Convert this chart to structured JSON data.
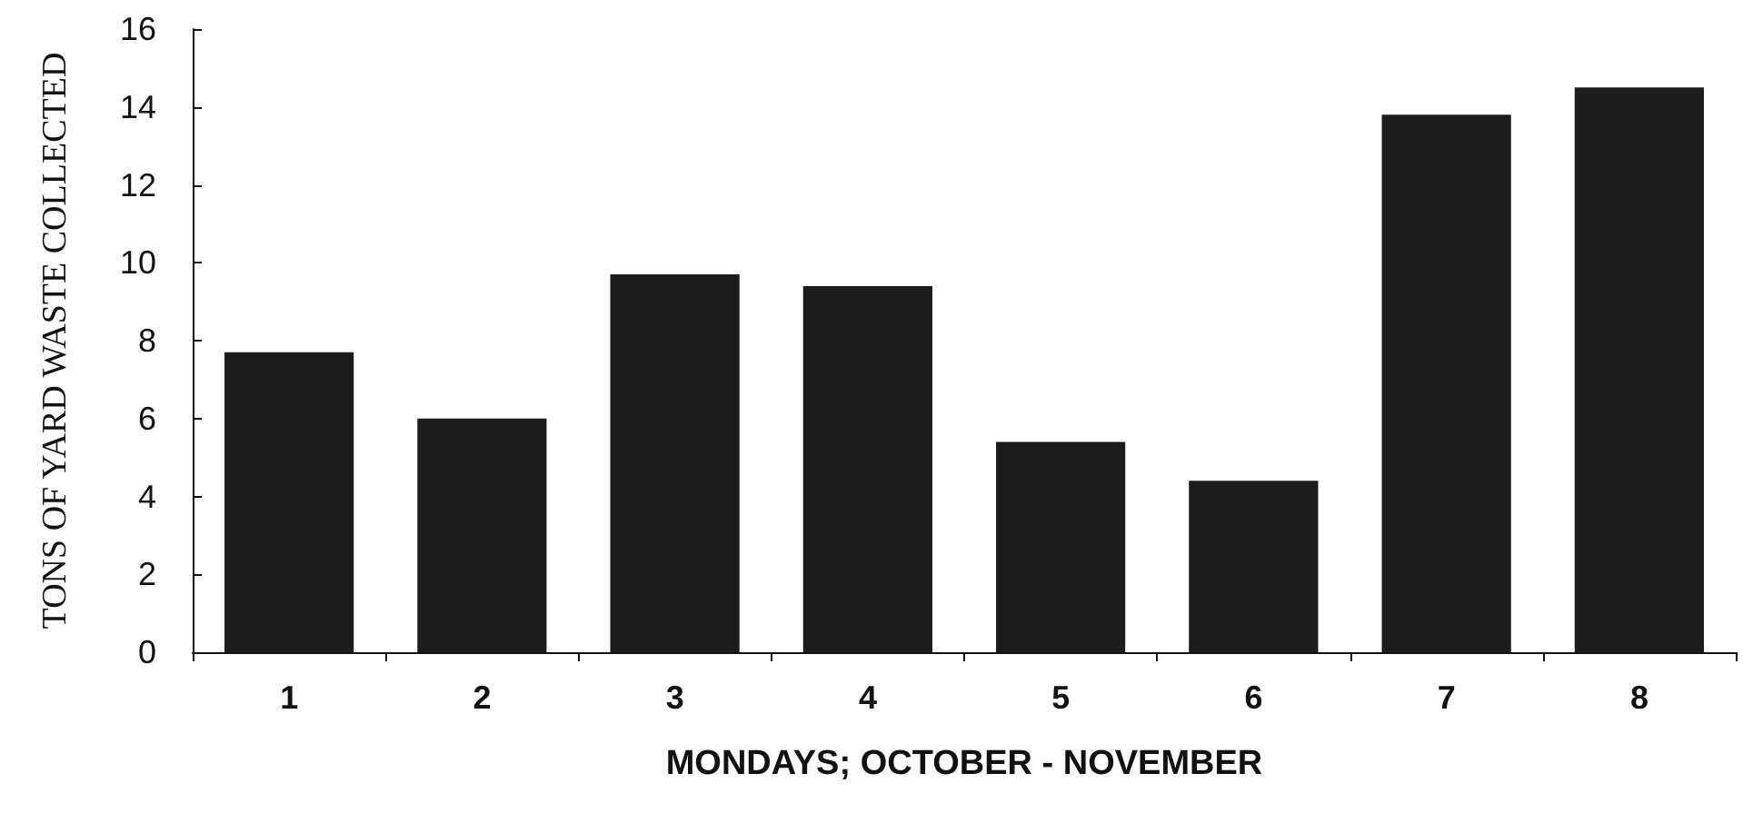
{
  "chart_data": {
    "type": "bar",
    "xlabel": "MONDAYS; OCTOBER - NOVEMBER",
    "ylabel": "TONS OF YARD WASTE COLLECTED",
    "categories": [
      "1",
      "2",
      "3",
      "4",
      "5",
      "6",
      "7",
      "8"
    ],
    "values": [
      7.7,
      6.0,
      9.7,
      9.4,
      5.4,
      4.4,
      13.8,
      14.5
    ],
    "color": "#1c1c1c",
    "ylim": [
      0,
      16
    ],
    "yticks": [
      0,
      2,
      4,
      6,
      8,
      10,
      12,
      14,
      16
    ],
    "grid": false
  }
}
